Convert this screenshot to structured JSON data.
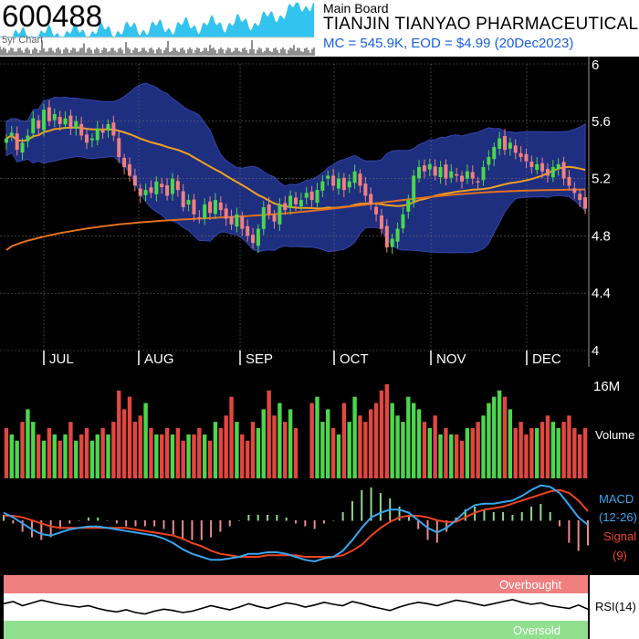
{
  "header": {
    "ticker": "600488",
    "spark_label": "5yr Chart",
    "board": "Main Board",
    "company": "TIANJIN TIANYAO PHARMACEUTICAL",
    "mc_line": "MC = 545.9K, EOD = $4.99 (20Dec2023)"
  },
  "colors": {
    "up": "#4cd64c",
    "down": "#e2473f",
    "band": "#1f2f80",
    "sma_short": "#f0a020",
    "sma_long": "#e07020",
    "macd": "#3aa6ee",
    "signal": "#ee4420",
    "overbought": "#f08080",
    "oversold": "#90e090"
  },
  "chart_data": [
    {
      "type": "candlestick",
      "name": "price",
      "x_labels": [
        "JUL",
        "AUG",
        "SEP",
        "OCT",
        "NOV",
        "DEC"
      ],
      "ylim": [
        4,
        6
      ],
      "yticks": [
        "6",
        "5.6",
        "5.2",
        "4.8",
        "4.4",
        "4"
      ],
      "close": [
        5.48,
        5.52,
        5.4,
        5.45,
        5.5,
        5.62,
        5.55,
        5.68,
        5.6,
        5.65,
        5.58,
        5.62,
        5.55,
        5.6,
        5.5,
        5.45,
        5.48,
        5.55,
        5.52,
        5.58,
        5.5,
        5.35,
        5.28,
        5.22,
        5.15,
        5.08,
        5.12,
        5.1,
        5.18,
        5.14,
        5.08,
        5.2,
        5.12,
        5.0,
        5.05,
        4.95,
        4.92,
        5.02,
        4.96,
        5.05,
        4.98,
        4.92,
        4.88,
        4.95,
        4.85,
        4.8,
        4.75,
        4.85,
        5.0,
        4.95,
        4.9,
        5.02,
        4.98,
        5.08,
        5.02,
        5.05,
        5.1,
        5.05,
        5.12,
        5.18,
        5.22,
        5.15,
        5.2,
        5.12,
        5.18,
        5.25,
        5.15,
        5.08,
        5.02,
        4.95,
        4.85,
        4.72,
        4.78,
        4.85,
        4.95,
        5.05,
        5.22,
        5.28,
        5.25,
        5.3,
        5.22,
        5.28,
        5.2,
        5.25,
        5.22,
        5.18,
        5.25,
        5.2,
        5.18,
        5.28,
        5.35,
        5.42,
        5.48,
        5.4,
        5.45,
        5.38,
        5.35,
        5.32,
        5.28,
        5.3,
        5.25,
        5.22,
        5.28,
        5.3,
        5.2,
        5.15,
        5.1,
        5.05,
        4.99
      ],
      "volume_ylim": [
        0,
        16
      ],
      "volume_unit": "M",
      "volume_label": "Volume",
      "volume": [
        8,
        7,
        6,
        9,
        11,
        9,
        7,
        6,
        8,
        7,
        6,
        7,
        9,
        6,
        7,
        8,
        6,
        7,
        8,
        7,
        9,
        14,
        11,
        13,
        9,
        10,
        12,
        8,
        7,
        7,
        8,
        7,
        8,
        6,
        7,
        7,
        8,
        7,
        6,
        9,
        8,
        10,
        13,
        9,
        7,
        6,
        9,
        8,
        11,
        14,
        10,
        12,
        9,
        11,
        8,
        9,
        10,
        12,
        13,
        9,
        11,
        8,
        7,
        12,
        9,
        13,
        10,
        9,
        11,
        12,
        14,
        15,
        12,
        10,
        9,
        13,
        12,
        11,
        9,
        8,
        10,
        7,
        8,
        7,
        7,
        6,
        8,
        8,
        9,
        10,
        12,
        13,
        14,
        13,
        11,
        8,
        9,
        7,
        8,
        8,
        9,
        10,
        9,
        8,
        9,
        10,
        8,
        7,
        8
      ],
      "volume_up": [
        0,
        1,
        1,
        0,
        1,
        1,
        0,
        1,
        0,
        1,
        0,
        1,
        0,
        1,
        0,
        0,
        1,
        1,
        0,
        1,
        0,
        0,
        0,
        0,
        0,
        0,
        1,
        0,
        1,
        0,
        0,
        1,
        0,
        0,
        1,
        0,
        0,
        1,
        0,
        1,
        0,
        0,
        0,
        1,
        0,
        0,
        0,
        1,
        1,
        0,
        0,
        1,
        0,
        1,
        0,
        1,
        1,
        0,
        1,
        1,
        1,
        0,
        1,
        0,
        1,
        1,
        0,
        0,
        0,
        0,
        0,
        0,
        1,
        1,
        1,
        1,
        1,
        1,
        0,
        1,
        0,
        1,
        0,
        1,
        0,
        0,
        1,
        0,
        0,
        1,
        1,
        1,
        1,
        0,
        1,
        0,
        0,
        0,
        0,
        1,
        0,
        0,
        1,
        1,
        0,
        0,
        0,
        0,
        0
      ]
    },
    {
      "type": "line",
      "name": "MACD (12-26)",
      "labels": [
        "MACD",
        "(12-26)",
        "Signal",
        "(9)"
      ],
      "macd": [
        0.05,
        0.02,
        -0.02,
        -0.06,
        -0.09,
        -0.1,
        -0.08,
        -0.06,
        -0.05,
        -0.04,
        -0.04,
        -0.05,
        -0.06,
        -0.07,
        -0.08,
        -0.09,
        -0.1,
        -0.12,
        -0.15,
        -0.19,
        -0.22,
        -0.24,
        -0.26,
        -0.26,
        -0.25,
        -0.24,
        -0.22,
        -0.22,
        -0.21,
        -0.21,
        -0.22,
        -0.24,
        -0.26,
        -0.27,
        -0.25,
        -0.24,
        -0.2,
        -0.13,
        -0.05,
        0.02,
        0.05,
        0.07,
        0.07,
        0.05,
        0.0,
        -0.05,
        -0.08,
        -0.05,
        0.0,
        0.06,
        0.1,
        0.11,
        0.11,
        0.12,
        0.13,
        0.16,
        0.2,
        0.23,
        0.22,
        0.18,
        0.1,
        0.02,
        -0.03
      ],
      "signal": [
        0.03,
        0.03,
        0.02,
        0.0,
        -0.02,
        -0.04,
        -0.05,
        -0.05,
        -0.05,
        -0.05,
        -0.05,
        -0.05,
        -0.05,
        -0.05,
        -0.06,
        -0.07,
        -0.08,
        -0.09,
        -0.1,
        -0.12,
        -0.15,
        -0.17,
        -0.2,
        -0.22,
        -0.23,
        -0.24,
        -0.24,
        -0.24,
        -0.23,
        -0.23,
        -0.23,
        -0.23,
        -0.24,
        -0.24,
        -0.24,
        -0.24,
        -0.23,
        -0.2,
        -0.16,
        -0.1,
        -0.05,
        -0.01,
        0.02,
        0.03,
        0.03,
        0.02,
        0.0,
        -0.01,
        -0.01,
        0.02,
        0.05,
        0.07,
        0.08,
        0.09,
        0.11,
        0.13,
        0.15,
        0.17,
        0.19,
        0.2,
        0.18,
        0.13,
        0.06
      ],
      "ylim": [
        -0.3,
        0.3
      ]
    },
    {
      "type": "line",
      "name": "RSI(14)",
      "label": "RSI(14)",
      "overbought_label": "Overbought",
      "oversold_label": "Oversold",
      "ylim": [
        0,
        100
      ],
      "rsi": [
        55,
        58,
        52,
        56,
        60,
        57,
        54,
        52,
        50,
        52,
        48,
        45,
        43,
        46,
        42,
        40,
        44,
        47,
        45,
        42,
        44,
        48,
        52,
        49,
        46,
        50,
        55,
        51,
        48,
        52,
        56,
        54,
        50,
        53,
        57,
        54,
        52,
        58,
        55,
        51,
        48,
        45,
        50,
        54,
        57,
        55,
        52,
        56,
        60,
        58,
        55,
        52,
        55,
        58,
        61,
        57,
        54,
        56,
        52,
        50,
        48,
        53,
        47
      ]
    }
  ]
}
